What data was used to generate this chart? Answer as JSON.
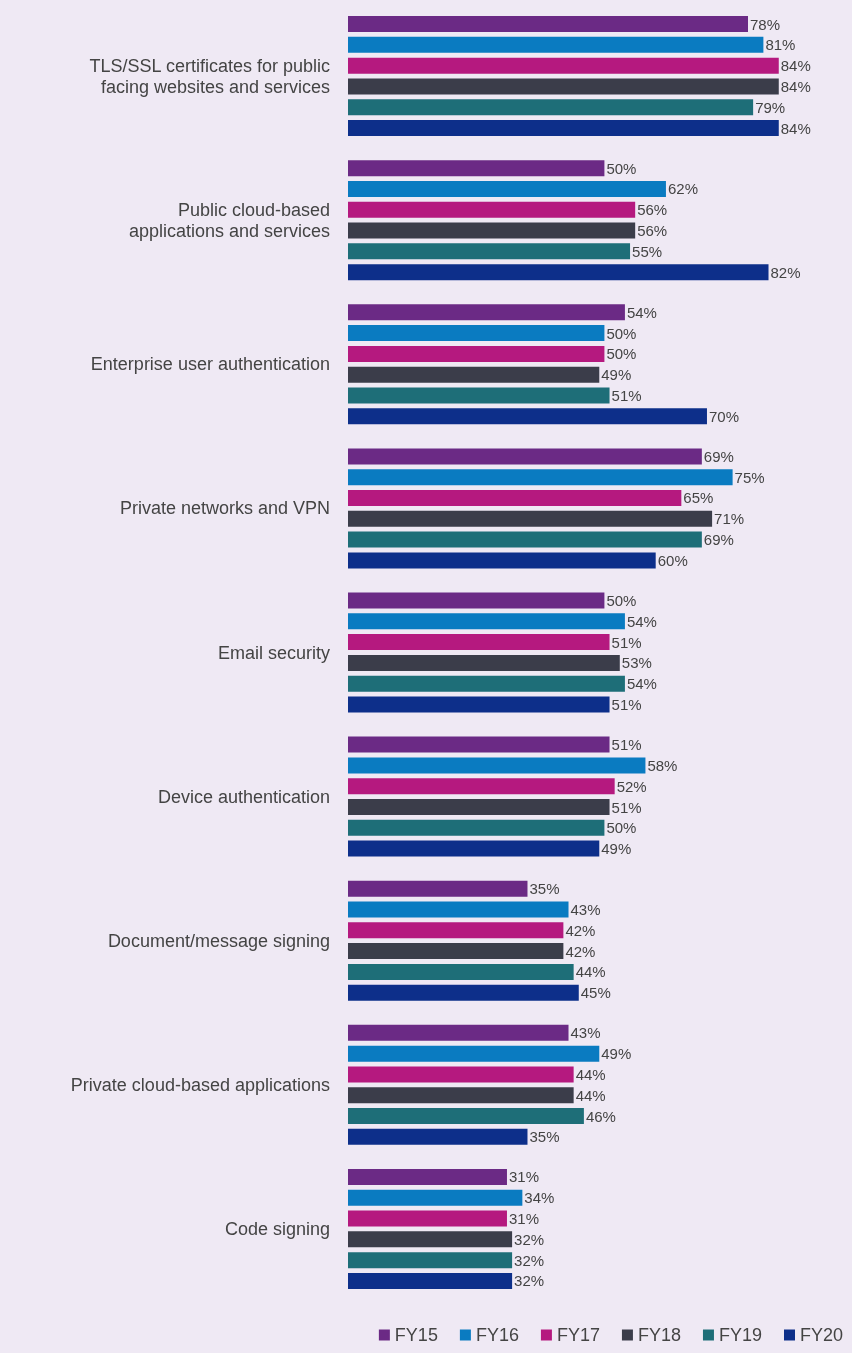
{
  "chart_data": {
    "type": "bar",
    "orientation": "horizontal",
    "categories": [
      "TLS/SSL certificates for public\nfacing websites and services",
      "Public cloud-based\napplications and services",
      "Enterprise user authentication",
      "Private networks and VPN",
      "Email security",
      "Device authentication",
      "Document/message signing",
      "Private cloud-based applications",
      "Code signing"
    ],
    "series": [
      {
        "name": "FY15",
        "color": "#6b2a85",
        "values": [
          78,
          50,
          54,
          69,
          50,
          51,
          35,
          43,
          31
        ],
        "value_labels": [
          "78%",
          "50%",
          "54%",
          "69%",
          "50%",
          "51%",
          "35%",
          "43%",
          "31%"
        ]
      },
      {
        "name": "FY16",
        "color": "#0a7bc1",
        "values": [
          81,
          62,
          50,
          75,
          54,
          58,
          43,
          49,
          34
        ],
        "value_labels": [
          "81%",
          "62%",
          "50%",
          "75%",
          "54%",
          "58%",
          "43%",
          "49%",
          "34%"
        ]
      },
      {
        "name": "FY17",
        "color": "#b5197f",
        "values": [
          84,
          56,
          50,
          65,
          51,
          52,
          42,
          44,
          31
        ],
        "value_labels": [
          "84%",
          "56%",
          "50%",
          "65%",
          "51%",
          "52%",
          "42%",
          "44%",
          "31%"
        ]
      },
      {
        "name": "FY18",
        "color": "#3b3d4a",
        "values": [
          84,
          56,
          49,
          71,
          53,
          51,
          42,
          44,
          32
        ],
        "value_labels": [
          "84%",
          "56%",
          "49%",
          "71%",
          "53%",
          "51%",
          "42%",
          "44%",
          "32%"
        ]
      },
      {
        "name": "FY19",
        "color": "#1e6e78",
        "values": [
          79,
          55,
          51,
          69,
          54,
          50,
          44,
          46,
          32
        ],
        "value_labels": [
          "79%",
          "55%",
          "51%",
          "69%",
          "54%",
          "50%",
          "44%",
          "46%",
          "32%"
        ]
      },
      {
        "name": "FY20",
        "color": "#0d2f8a",
        "values": [
          84,
          82,
          70,
          60,
          51,
          49,
          45,
          35,
          32
        ],
        "value_labels": [
          "84%",
          "82%",
          "70%",
          "60%",
          "51%",
          "49%",
          "45%",
          "35%",
          "32%"
        ]
      }
    ],
    "legend": "bottom",
    "grid": false
  }
}
